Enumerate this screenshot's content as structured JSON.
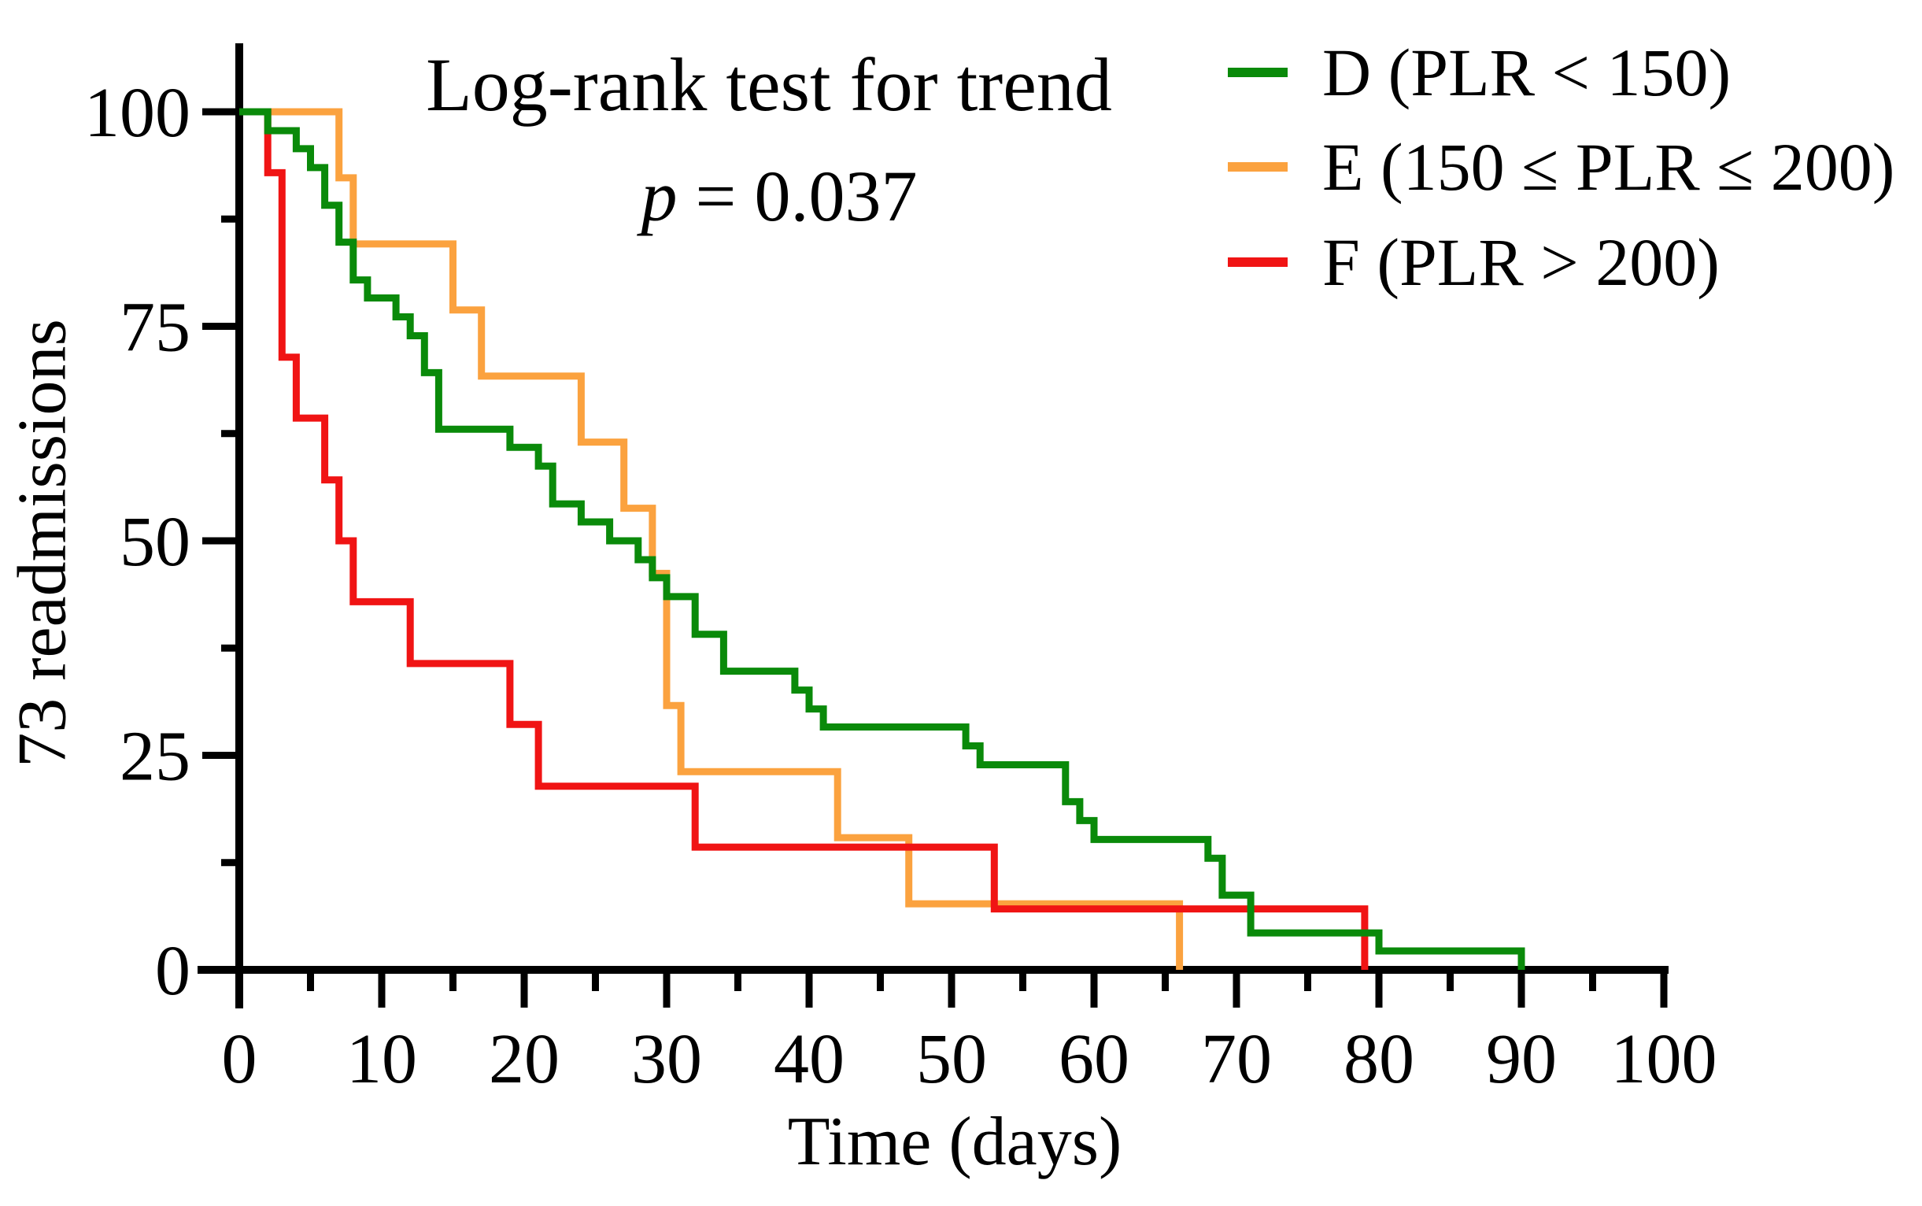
{
  "figure": {
    "title": "Log-rank test for trend",
    "p_stat": {
      "symbol": "p",
      "rest": " = 0.037"
    },
    "x_axis_label": "Time (days)",
    "y_axis_label": "73 readmissions"
  },
  "chart_data": {
    "type": "line",
    "subtype": "kaplan-meier-step",
    "title": "Log-rank test for trend",
    "annotation": "p = 0.037",
    "xlabel": "Time (days)",
    "ylabel": "73 readmissions",
    "xlim": [
      0,
      100
    ],
    "ylim": [
      0,
      100
    ],
    "grid": false,
    "legend_position": "top-right",
    "x_major_ticks": [
      0,
      10,
      20,
      30,
      40,
      50,
      60,
      70,
      80,
      90,
      100
    ],
    "x_minor_ticks": [
      5,
      15,
      25,
      35,
      45,
      55,
      65,
      75,
      85,
      95
    ],
    "y_major_ticks": [
      0,
      25,
      50,
      75,
      100
    ],
    "y_minor_ticks": [
      12.5,
      37.5,
      62.5,
      87.5
    ],
    "axis_color": "#000000",
    "draw_order": [
      1,
      2,
      0
    ],
    "series": [
      {
        "name": "D (PLR < 150)",
        "color": "#0a8a0a",
        "start": [
          0,
          100
        ],
        "steps": [
          [
            2,
            97.8
          ],
          [
            4,
            95.7
          ],
          [
            5,
            93.5
          ],
          [
            6,
            89.1
          ],
          [
            7,
            84.8
          ],
          [
            8,
            80.4
          ],
          [
            9,
            78.3
          ],
          [
            11,
            76.1
          ],
          [
            12,
            73.9
          ],
          [
            13,
            69.6
          ],
          [
            14,
            63.0
          ],
          [
            19,
            60.9
          ],
          [
            21,
            58.7
          ],
          [
            22,
            54.3
          ],
          [
            24,
            52.2
          ],
          [
            26,
            50.0
          ],
          [
            28,
            47.8
          ],
          [
            29,
            45.7
          ],
          [
            30,
            43.5
          ],
          [
            32,
            39.1
          ],
          [
            34,
            34.8
          ],
          [
            39,
            32.6
          ],
          [
            40,
            30.4
          ],
          [
            41,
            28.3
          ],
          [
            51,
            26.1
          ],
          [
            52,
            23.9
          ],
          [
            58,
            19.6
          ],
          [
            59,
            17.4
          ],
          [
            60,
            15.2
          ],
          [
            68,
            13.0
          ],
          [
            69,
            8.7
          ],
          [
            71,
            4.3
          ],
          [
            80,
            2.2
          ],
          [
            90,
            0
          ]
        ]
      },
      {
        "name": "E (150 ≤ PLR ≤ 200)",
        "color": "#fba23f",
        "start": [
          0,
          100
        ],
        "steps": [
          [
            7,
            92.3
          ],
          [
            8,
            84.6
          ],
          [
            15,
            76.9
          ],
          [
            17,
            69.2
          ],
          [
            24,
            61.5
          ],
          [
            27,
            53.8
          ],
          [
            29,
            46.2
          ],
          [
            30,
            30.8
          ],
          [
            31,
            23.1
          ],
          [
            42,
            15.4
          ],
          [
            47,
            7.7
          ],
          [
            66,
            0
          ]
        ]
      },
      {
        "name": "F (PLR > 200)",
        "color": "#f01414",
        "start": [
          0,
          100
        ],
        "steps": [
          [
            2,
            92.9
          ],
          [
            3,
            71.4
          ],
          [
            4,
            64.3
          ],
          [
            6,
            57.1
          ],
          [
            7,
            50.0
          ],
          [
            8,
            42.9
          ],
          [
            12,
            35.7
          ],
          [
            19,
            28.6
          ],
          [
            21,
            21.4
          ],
          [
            32,
            14.3
          ],
          [
            53,
            7.1
          ],
          [
            79,
            0
          ]
        ]
      }
    ]
  }
}
